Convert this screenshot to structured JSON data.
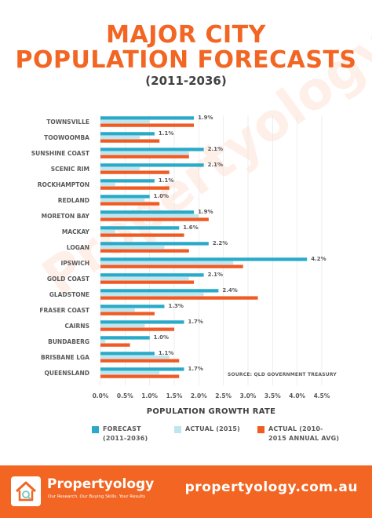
{
  "colors": {
    "forecast": "#29aac8",
    "actual_2015": "#bfe6ef",
    "actual_avg": "#f05a23",
    "title": "#f26522",
    "title_dark": "#414042",
    "label": "#58595b",
    "footer_bg": "#f26522",
    "watermark": "#f26522"
  },
  "header": {
    "title_line1": "MAJOR CITY",
    "title_line2": "POPULATION FORECASTS",
    "subtitle": "(2011-2036)"
  },
  "watermark": "Propertyology",
  "chart_data": {
    "type": "bar",
    "orientation": "horizontal",
    "categories": [
      "TOWNSVILLE",
      "TOOWOOMBA",
      "SUNSHINE COAST",
      "SCENIC RIM",
      "ROCKHAMPTON",
      "REDLAND",
      "MORETON BAY",
      "MACKAY",
      "LOGAN",
      "IPSWICH",
      "GOLD COAST",
      "GLADSTONE",
      "FRASER COAST",
      "CAIRNS",
      "BUNDABERG",
      "BRISBANE LGA",
      "QUEENSLAND"
    ],
    "series": [
      {
        "name": "FORECAST (2011-2036)",
        "values": [
          1.9,
          1.1,
          2.1,
          2.1,
          1.1,
          1.0,
          1.9,
          1.6,
          2.2,
          4.2,
          2.1,
          2.4,
          1.3,
          1.7,
          1.0,
          1.1,
          1.7
        ]
      },
      {
        "name": "ACTUAL (2015)",
        "values": [
          1.0,
          0.8,
          1.8,
          0.8,
          0.3,
          0.9,
          2.0,
          0.3,
          1.3,
          2.7,
          1.8,
          2.1,
          0.7,
          0.9,
          0.1,
          1.4,
          1.2
        ]
      },
      {
        "name": "ACTUAL (2010-2015 ANNUAL AVG)",
        "values": [
          1.9,
          1.2,
          1.8,
          1.4,
          1.4,
          1.2,
          2.2,
          1.7,
          1.8,
          2.9,
          1.9,
          3.2,
          1.1,
          1.5,
          0.6,
          1.6,
          1.6
        ]
      }
    ],
    "data_labels": [
      "1.9%",
      "1.1%",
      "2.1%",
      "2.1%",
      "1.1%",
      "1.0%",
      "1.9%",
      "1.6%",
      "2.2%",
      "4.2%",
      "2.1%",
      "2.4%",
      "1.3%",
      "1.7%",
      "1.0%",
      "1.1%",
      "1.7%"
    ],
    "x_ticks": [
      "0.0%",
      "0.5%",
      "1.0%",
      "1.5%",
      "2.0%",
      "2.5%",
      "3.0%",
      "3.5%",
      "4.0%",
      "4.5%"
    ],
    "xlim": [
      0,
      4.5
    ],
    "xlabel": "POPULATION GROWTH RATE",
    "source": "SOURCE: QLD GOVERNMENT TREASURY",
    "legend": {
      "position": "bottom",
      "items": [
        {
          "line1": "FORECAST",
          "line2": "(2011-2036)"
        },
        {
          "line1": "ACTUAL (2015)",
          "line2": ""
        },
        {
          "line1": "ACTUAL (2010-",
          "line2": "2015 ANNUAL AVG)"
        }
      ]
    }
  },
  "footer": {
    "brand": "Propertyology",
    "tagline": "Our Research. Our Buying Skills. Your Results",
    "url": "propertyology.com.au"
  }
}
